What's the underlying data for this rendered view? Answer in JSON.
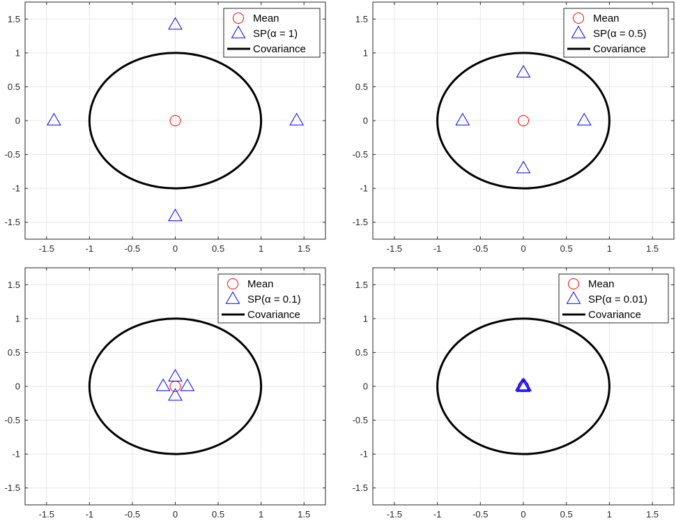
{
  "figure": {
    "colors": {
      "mean": "#ff0000",
      "sigma_points": "#0000ff",
      "covariance": "#000000",
      "grid": "#e6e6e6",
      "axes": "#262626",
      "legend_border": "#262626"
    }
  },
  "chart_data": [
    {
      "type": "scatter",
      "xlim": [
        -1.75,
        1.75
      ],
      "ylim": [
        -1.75,
        1.75
      ],
      "xticks": [
        -1.5,
        -1,
        -0.5,
        0,
        0.5,
        1,
        1.5
      ],
      "yticks": [
        -1.5,
        -1,
        -0.5,
        0,
        0.5,
        1,
        1.5
      ],
      "xtick_labels": [
        "-1.5",
        "-1",
        "-0.5",
        "0",
        "0.5",
        "1",
        "1.5"
      ],
      "ytick_labels": [
        "-1.5",
        "-1",
        "-0.5",
        "0",
        "0.5",
        "1",
        "1.5"
      ],
      "grid": true,
      "legend_position": "top-right",
      "legend": [
        "Mean",
        "SP(α = 1)",
        "Covariance"
      ],
      "mean": [
        0,
        0
      ],
      "sigma_points": [
        [
          1.414,
          0
        ],
        [
          -1.414,
          0
        ],
        [
          0,
          1.414
        ],
        [
          0,
          -1.414
        ]
      ],
      "covariance_radius": 1
    },
    {
      "type": "scatter",
      "xlim": [
        -1.75,
        1.75
      ],
      "ylim": [
        -1.75,
        1.75
      ],
      "xticks": [
        -1.5,
        -1,
        -0.5,
        0,
        0.5,
        1,
        1.5
      ],
      "yticks": [
        -1.5,
        -1,
        -0.5,
        0,
        0.5,
        1,
        1.5
      ],
      "xtick_labels": [
        "-1.5",
        "-1",
        "-0.5",
        "0",
        "0.5",
        "1",
        "1.5"
      ],
      "ytick_labels": [
        "-1.5",
        "-1",
        "-0.5",
        "0",
        "0.5",
        "1",
        "1.5"
      ],
      "grid": true,
      "legend_position": "top-right",
      "legend": [
        "Mean",
        "SP(α = 0.5)",
        "Covariance"
      ],
      "mean": [
        0,
        0
      ],
      "sigma_points": [
        [
          0.707,
          0
        ],
        [
          -0.707,
          0
        ],
        [
          0,
          0.707
        ],
        [
          0,
          -0.707
        ]
      ],
      "covariance_radius": 1
    },
    {
      "type": "scatter",
      "xlim": [
        -1.75,
        1.75
      ],
      "ylim": [
        -1.75,
        1.75
      ],
      "xticks": [
        -1.5,
        -1,
        -0.5,
        0,
        0.5,
        1,
        1.5
      ],
      "yticks": [
        -1.5,
        -1,
        -0.5,
        0,
        0.5,
        1,
        1.5
      ],
      "xtick_labels": [
        "-1.5",
        "-1",
        "-0.5",
        "0",
        "0.5",
        "1",
        "1.5"
      ],
      "ytick_labels": [
        "-1.5",
        "-1",
        "-0.5",
        "0",
        "0.5",
        "1",
        "1.5"
      ],
      "grid": true,
      "legend_position": "top-right",
      "legend": [
        "Mean",
        "SP(α = 0.1)",
        "Covariance"
      ],
      "mean": [
        0,
        0
      ],
      "sigma_points": [
        [
          0.141,
          0
        ],
        [
          -0.141,
          0
        ],
        [
          0,
          0.141
        ],
        [
          0,
          -0.141
        ]
      ],
      "covariance_radius": 1
    },
    {
      "type": "scatter",
      "xlim": [
        -1.75,
        1.75
      ],
      "ylim": [
        -1.75,
        1.75
      ],
      "xticks": [
        -1.5,
        -1,
        -0.5,
        0,
        0.5,
        1,
        1.5
      ],
      "yticks": [
        -1.5,
        -1,
        -0.5,
        0,
        0.5,
        1,
        1.5
      ],
      "xtick_labels": [
        "-1.5",
        "-1",
        "-0.5",
        "0",
        "0.5",
        "1",
        "1.5"
      ],
      "ytick_labels": [
        "-1.5",
        "-1",
        "-0.5",
        "0",
        "0.5",
        "1",
        "1.5"
      ],
      "grid": true,
      "legend_position": "top-right",
      "legend": [
        "Mean",
        "SP(α = 0.01)",
        "Covariance"
      ],
      "mean": [
        0,
        0
      ],
      "sigma_points": [
        [
          0.0141,
          0
        ],
        [
          -0.0141,
          0
        ],
        [
          0,
          0.0141
        ],
        [
          0,
          -0.0141
        ]
      ],
      "covariance_radius": 1
    }
  ]
}
